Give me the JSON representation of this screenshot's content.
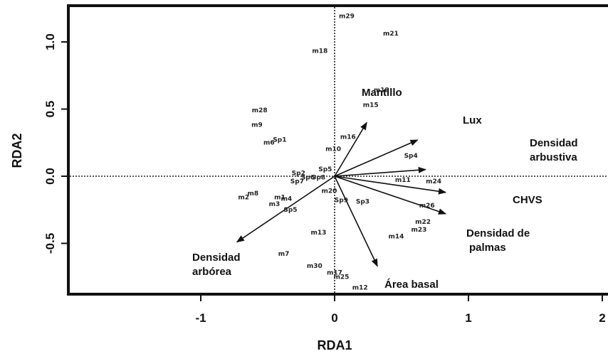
{
  "chart_data": {
    "type": "scatter",
    "xlabel": "RDA1",
    "ylabel": "RDA2",
    "xlim": [
      -1.95,
      2.05
    ],
    "ylim": [
      -0.9,
      1.28
    ],
    "xticks": [
      -1,
      0,
      1,
      2
    ],
    "yticks": [
      -0.5,
      0.0,
      0.5,
      1.0
    ],
    "xtick_labels": [
      "-1",
      "0",
      "1",
      "2"
    ],
    "ytick_labels": [
      "-0.5",
      "0.0",
      "0.5",
      "1.0"
    ],
    "reference_lines": {
      "x": 0,
      "y": 0,
      "style": "dotted"
    },
    "sites": [
      {
        "label": "m29",
        "x": 0.09,
        "y": 1.19
      },
      {
        "label": "m21",
        "x": 0.42,
        "y": 1.06
      },
      {
        "label": "m18",
        "x": -0.11,
        "y": 0.93
      },
      {
        "label": "m19",
        "x": 0.35,
        "y": 0.64
      },
      {
        "label": "m15",
        "x": 0.27,
        "y": 0.53
      },
      {
        "label": "m28",
        "x": -0.56,
        "y": 0.49
      },
      {
        "label": "m9",
        "x": -0.58,
        "y": 0.38
      },
      {
        "label": "m6",
        "x": -0.49,
        "y": 0.25
      },
      {
        "label": "m16",
        "x": 0.1,
        "y": 0.29
      },
      {
        "label": "m10",
        "x": -0.01,
        "y": 0.2
      },
      {
        "label": "m11",
        "x": 0.51,
        "y": -0.03
      },
      {
        "label": "m24",
        "x": 0.74,
        "y": -0.04
      },
      {
        "label": "m20",
        "x": -0.04,
        "y": -0.11
      },
      {
        "label": "m2",
        "x": -0.68,
        "y": -0.16
      },
      {
        "label": "m8",
        "x": -0.61,
        "y": -0.13
      },
      {
        "label": "m1",
        "x": -0.41,
        "y": -0.16
      },
      {
        "label": "m4",
        "x": -0.36,
        "y": -0.17
      },
      {
        "label": "m3",
        "x": -0.45,
        "y": -0.21
      },
      {
        "label": "m26",
        "x": 0.69,
        "y": -0.22
      },
      {
        "label": "m22",
        "x": 0.66,
        "y": -0.34
      },
      {
        "label": "m23",
        "x": 0.63,
        "y": -0.4
      },
      {
        "label": "m14",
        "x": 0.46,
        "y": -0.45
      },
      {
        "label": "m13",
        "x": -0.12,
        "y": -0.42
      },
      {
        "label": "m7",
        "x": -0.38,
        "y": -0.58
      },
      {
        "label": "m30",
        "x": -0.15,
        "y": -0.67
      },
      {
        "label": "m17",
        "x": 0.0,
        "y": -0.72
      },
      {
        "label": "m25",
        "x": 0.05,
        "y": -0.75
      },
      {
        "label": "m12",
        "x": 0.19,
        "y": -0.83
      }
    ],
    "species": [
      {
        "label": "Sp1",
        "x": -0.41,
        "y": 0.27
      },
      {
        "label": "Sp4",
        "x": 0.57,
        "y": 0.15
      },
      {
        "label": "Sp5",
        "x": -0.07,
        "y": 0.05
      },
      {
        "label": "Sp2",
        "x": -0.27,
        "y": 0.02
      },
      {
        "label": "Sp7",
        "x": -0.28,
        "y": -0.04
      },
      {
        "label": "Sp6",
        "x": -0.2,
        "y": -0.01
      },
      {
        "label": "Sp8",
        "x": -0.12,
        "y": -0.01
      },
      {
        "label": "Sp9",
        "x": 0.05,
        "y": -0.18
      },
      {
        "label": "Sp3",
        "x": 0.21,
        "y": -0.19
      },
      {
        "label": "Sp5",
        "x": -0.33,
        "y": -0.25
      }
    ],
    "vectors": [
      {
        "label": "Mantillo",
        "x": 0.24,
        "y": 0.4
      },
      {
        "label": "Lux",
        "x": 0.62,
        "y": 0.27
      },
      {
        "label": "Densidad arbustiva",
        "x": 0.68,
        "y": 0.05
      },
      {
        "label": "CHVS",
        "x": 0.83,
        "y": -0.12
      },
      {
        "label": "Densidad de palmas",
        "x": 0.83,
        "y": -0.28
      },
      {
        "label": "Área basal",
        "x": 0.32,
        "y": -0.67
      },
      {
        "label": "Densidad arbórea",
        "x": -0.73,
        "y": -0.49
      }
    ],
    "vector_text": [
      {
        "key": "Mantillo",
        "lines": [
          "Mantillo"
        ]
      },
      {
        "key": "Lux",
        "lines": [
          "Lux"
        ]
      },
      {
        "key": "Densidad arbustiva",
        "lines": [
          "Densidad",
          "arbustiva"
        ]
      },
      {
        "key": "CHVS",
        "lines": [
          "CHVS"
        ]
      },
      {
        "key": "Densidad de palmas",
        "lines": [
          "Densidad de",
          "palmas"
        ]
      },
      {
        "key": "Área basal",
        "lines": [
          "Área basal"
        ]
      },
      {
        "key": "Densidad arbórea",
        "lines": [
          "Densidad",
          "arbórea"
        ]
      }
    ],
    "grid": false,
    "legend": "none"
  }
}
